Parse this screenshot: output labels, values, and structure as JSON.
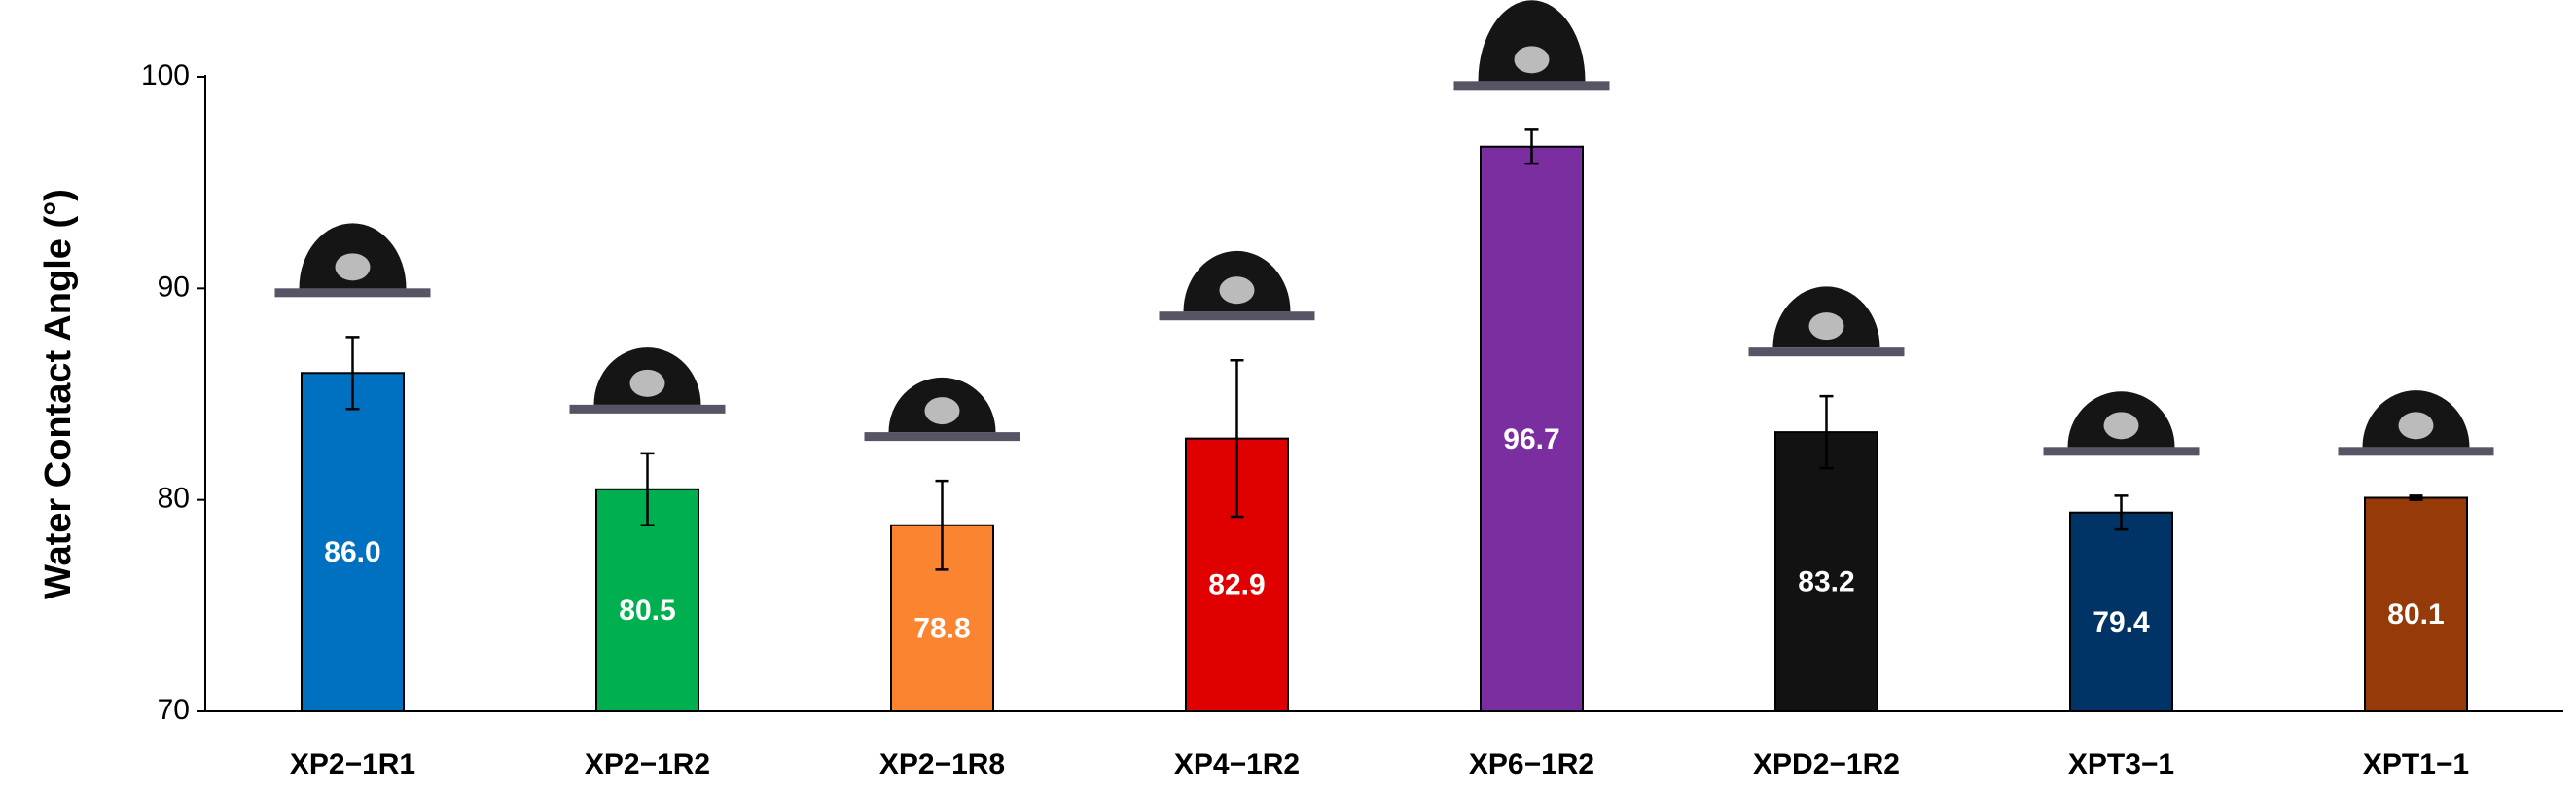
{
  "chart_data": {
    "type": "bar",
    "y_label": "Water Contact Angle (°)",
    "categories": [
      "XP2−1R1",
      "XP2−1R2",
      "XP2−1R8",
      "XP4−1R2",
      "XP6−1R2",
      "XPD2−1R2",
      "XPT3−1",
      "XPT1−1"
    ],
    "values": [
      86.0,
      80.5,
      78.8,
      82.9,
      96.7,
      83.2,
      79.4,
      80.1
    ],
    "value_labels": [
      "86.0",
      "80.5",
      "78.8",
      "82.9",
      "96.7",
      "83.2",
      "79.4",
      "80.1"
    ],
    "errors": [
      1.7,
      1.7,
      2.1,
      3.7,
      0.8,
      1.7,
      0.8,
      0.1
    ],
    "colors": [
      "#0070c0",
      "#00b050",
      "#fb8431",
      "#e00000",
      "#7a2ea0",
      "#121212",
      "#003366",
      "#953a08"
    ],
    "ylim": [
      70,
      100
    ],
    "yticks": [
      70,
      80,
      90,
      100
    ]
  }
}
